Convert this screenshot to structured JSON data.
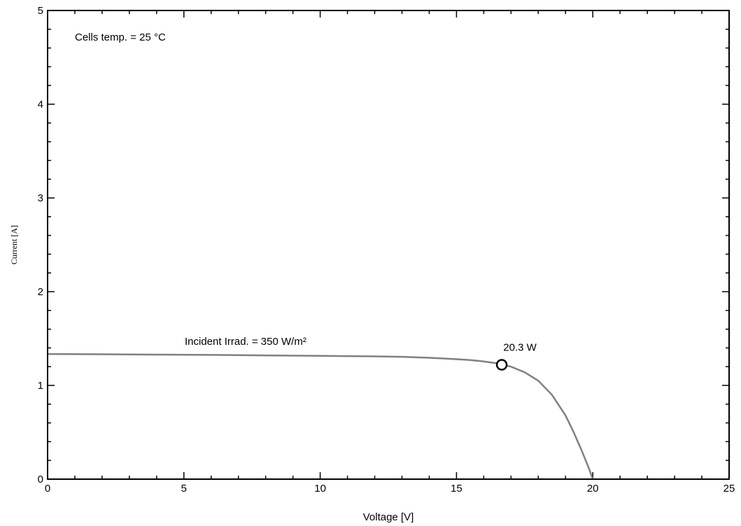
{
  "chart_data": {
    "type": "line",
    "title": "",
    "xlabel": "Voltage [V]",
    "ylabel": "Current [A]",
    "xlim": [
      0,
      25
    ],
    "ylim": [
      0,
      5
    ],
    "x_ticks": [
      0,
      5,
      10,
      15,
      20,
      25
    ],
    "y_ticks": [
      0,
      1,
      2,
      3,
      4,
      5
    ],
    "x_tick_labels": [
      "0",
      "5",
      "10",
      "15",
      "20",
      "25"
    ],
    "y_tick_labels": [
      "0",
      "1",
      "2",
      "3",
      "4",
      "5"
    ],
    "grid": false,
    "line_color": "#808080",
    "series": [
      {
        "x": [
          0,
          2,
          4,
          6,
          8,
          10,
          12,
          13,
          14,
          15,
          15.5,
          16,
          16.5,
          16.66,
          17,
          17.5,
          18,
          18.5,
          19,
          19.3,
          19.6,
          19.85,
          20.0
        ],
        "y": [
          1.335,
          1.332,
          1.328,
          1.325,
          1.32,
          1.315,
          1.31,
          1.305,
          1.295,
          1.28,
          1.27,
          1.255,
          1.235,
          1.22,
          1.2,
          1.14,
          1.05,
          0.9,
          0.68,
          0.5,
          0.3,
          0.12,
          0.0
        ]
      }
    ],
    "annotations": {
      "cells_temp": "Cells temp. = 25 °C",
      "incident": "Incident Irrad. = 350 W/m²",
      "mpp_label": "20.3 W",
      "mpp_point": [
        16.66,
        1.22
      ]
    }
  }
}
